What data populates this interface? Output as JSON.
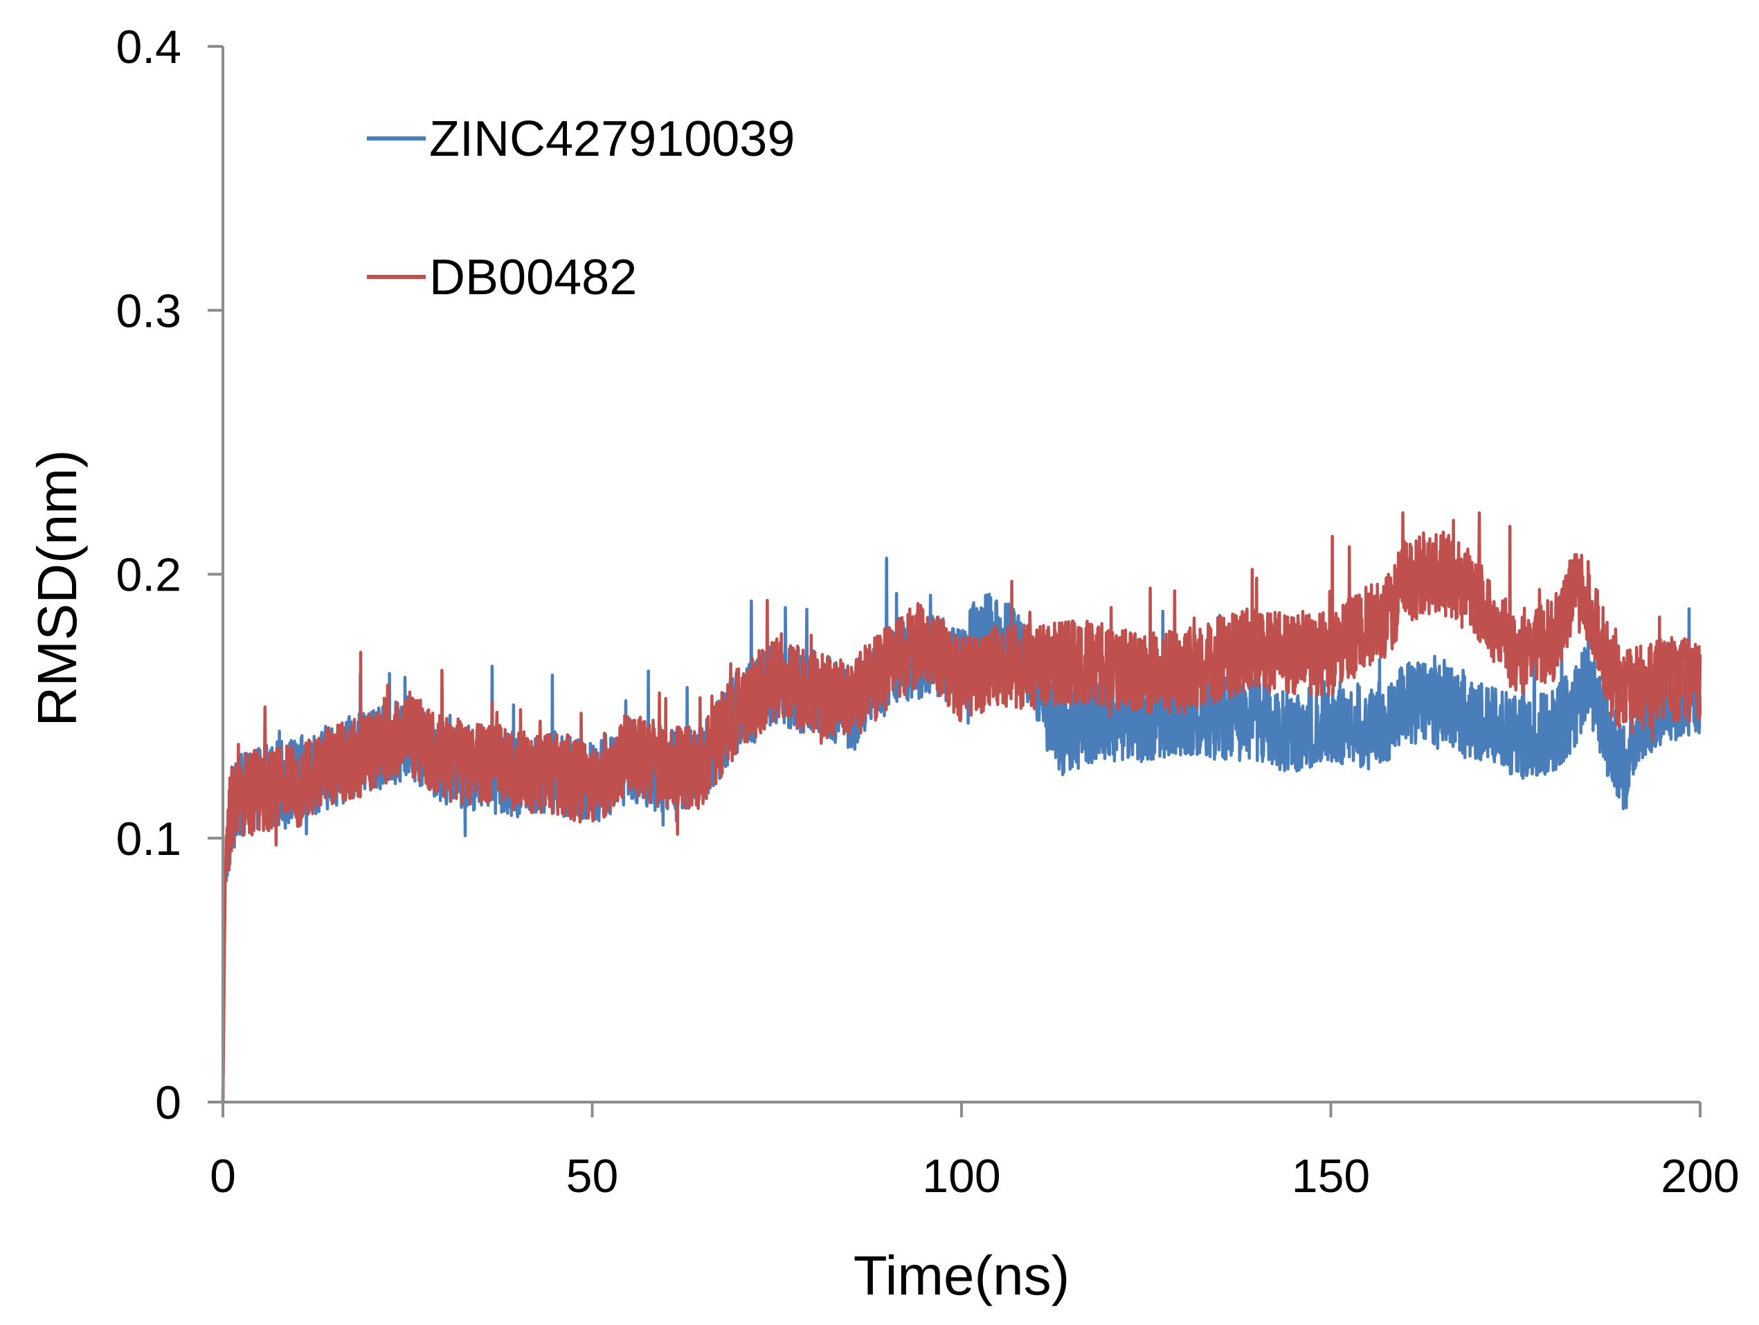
{
  "chart_data": {
    "type": "line",
    "title": "",
    "xlabel": "Time(ns)",
    "ylabel": "RMSD(nm)",
    "xlim": [
      0,
      200
    ],
    "ylim": [
      0,
      0.4
    ],
    "x_ticks": [
      "0",
      "50",
      "100",
      "150",
      "200"
    ],
    "y_ticks": [
      "0",
      "0.1",
      "0.2",
      "0.3",
      "0.4"
    ],
    "grid": false,
    "legend_position": "top-left",
    "series": [
      {
        "name": "ZINC427910039",
        "color": "#4A7EBB",
        "x": [
          0,
          0.3,
          1,
          2,
          5,
          10,
          15,
          20,
          25,
          30,
          35,
          40,
          45,
          50,
          55,
          60,
          65,
          70,
          75,
          80,
          85,
          90,
          95,
          100,
          102,
          105,
          108,
          110,
          112,
          114,
          116,
          120,
          125,
          130,
          135,
          140,
          145,
          150,
          155,
          158,
          160,
          163,
          166,
          170,
          175,
          180,
          183,
          185,
          188,
          190,
          192,
          195,
          198,
          200
        ],
        "y": [
          0,
          0.09,
          0.105,
          0.115,
          0.12,
          0.122,
          0.128,
          0.133,
          0.138,
          0.128,
          0.126,
          0.124,
          0.125,
          0.12,
          0.13,
          0.125,
          0.128,
          0.15,
          0.158,
          0.155,
          0.15,
          0.163,
          0.17,
          0.165,
          0.18,
          0.175,
          0.17,
          0.16,
          0.145,
          0.14,
          0.142,
          0.145,
          0.145,
          0.148,
          0.145,
          0.145,
          0.14,
          0.145,
          0.142,
          0.145,
          0.152,
          0.15,
          0.15,
          0.145,
          0.138,
          0.14,
          0.15,
          0.16,
          0.135,
          0.125,
          0.145,
          0.15,
          0.155,
          0.155
        ]
      },
      {
        "name": "DB00482",
        "color": "#C0504D",
        "x": [
          0,
          0.3,
          1,
          2,
          5,
          10,
          15,
          20,
          25,
          30,
          35,
          40,
          45,
          50,
          55,
          60,
          65,
          70,
          75,
          80,
          85,
          90,
          95,
          100,
          105,
          110,
          115,
          120,
          125,
          130,
          135,
          140,
          145,
          150,
          155,
          158,
          160,
          163,
          166,
          170,
          175,
          180,
          183,
          185,
          188,
          190,
          195,
          200
        ],
        "y": [
          0,
          0.085,
          0.11,
          0.115,
          0.118,
          0.12,
          0.128,
          0.132,
          0.14,
          0.13,
          0.128,
          0.126,
          0.125,
          0.12,
          0.132,
          0.127,
          0.127,
          0.15,
          0.16,
          0.155,
          0.152,
          0.165,
          0.175,
          0.16,
          0.165,
          0.165,
          0.167,
          0.165,
          0.163,
          0.163,
          0.168,
          0.172,
          0.17,
          0.17,
          0.18,
          0.185,
          0.198,
          0.2,
          0.2,
          0.19,
          0.17,
          0.175,
          0.195,
          0.19,
          0.16,
          0.155,
          0.16,
          0.16
        ]
      }
    ]
  }
}
